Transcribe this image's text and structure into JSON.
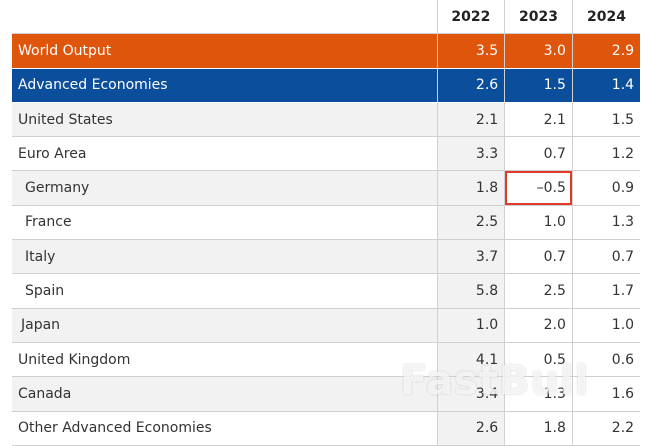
{
  "table": {
    "columns": [
      "2022",
      "2023",
      "2024"
    ],
    "rows": [
      {
        "label": "World Output",
        "values": [
          "3.5",
          "3.0",
          "2.9"
        ]
      },
      {
        "label": "Advanced Economies",
        "values": [
          "2.6",
          "1.5",
          "1.4"
        ]
      },
      {
        "label": "United States",
        "values": [
          "2.1",
          "2.1",
          "1.5"
        ]
      },
      {
        "label": "Euro Area",
        "values": [
          "3.3",
          "0.7",
          "1.2"
        ]
      },
      {
        "label": "Germany",
        "values": [
          "1.8",
          "–0.5",
          "0.9"
        ]
      },
      {
        "label": "France",
        "values": [
          "2.5",
          "1.0",
          "1.3"
        ]
      },
      {
        "label": "Italy",
        "values": [
          "3.7",
          "0.7",
          "0.7"
        ]
      },
      {
        "label": "Spain",
        "values": [
          "5.8",
          "2.5",
          "1.7"
        ]
      },
      {
        "label": "Japan",
        "values": [
          "1.0",
          "2.0",
          "1.0"
        ]
      },
      {
        "label": "United Kingdom",
        "values": [
          "4.1",
          "0.5",
          "0.6"
        ]
      },
      {
        "label": "Canada",
        "values": [
          "3.4",
          "1.3",
          "1.6"
        ]
      },
      {
        "label": "Other Advanced Economies",
        "values": [
          "2.6",
          "1.8",
          "2.2"
        ]
      }
    ]
  },
  "watermark": "FastBull"
}
